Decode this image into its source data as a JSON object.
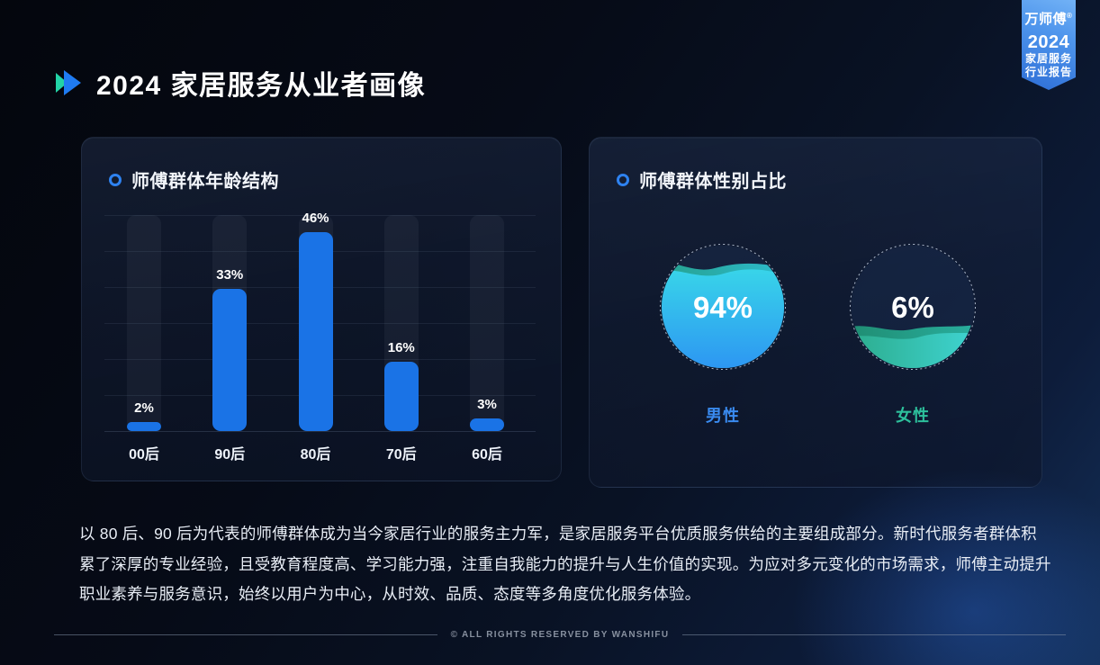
{
  "header": {
    "title": "2024 家居服务从业者画像"
  },
  "badge": {
    "brand": "万师傅",
    "reg": "®",
    "year": "2024",
    "sub1": "家居服务",
    "sub2": "行业报告"
  },
  "paragraph": {
    "lines": [
      "以 80 后、90 后为代表的师傅群体成为当今家居行业的服务主力军，是家居服务平台优质服务供给的主要组成部分。新时代服务者群体积",
      "累了深厚的专业经验，且受教育程度高、学习能力强，注重自我能力的提升与人生价值的实现。为应对多元变化的市场需求，师傅主动提升",
      "职业素养与服务意识，始终以用户为中心，从时效、品质、态度等多角度优化服务体验。"
    ]
  },
  "footer": {
    "copyright": "© ALL RIGHTS RESERVED BY WANSHIFU"
  },
  "colors": {
    "accent_blue": "#1f7bf2",
    "accent_teal": "#22d3a6",
    "bar_blue": "#1a73e6",
    "male_label_blue": "#3a8bf0",
    "female_label_teal": "#2dc09c",
    "ribbon_blue_top": "#72b2f6",
    "ribbon_blue_bottom": "#2e6ed6"
  },
  "chart_data": [
    {
      "type": "bar",
      "title": "师傅群体年龄结构",
      "categories": [
        "00后",
        "90后",
        "80后",
        "70后",
        "60后"
      ],
      "values": [
        2,
        33,
        46,
        16,
        3
      ],
      "data_labels": [
        "2%",
        "33%",
        "46%",
        "16%",
        "3%"
      ],
      "unit": "%",
      "ylim": [
        0,
        50
      ],
      "grid": true,
      "gridline_count": 7,
      "bar_color": "#1a73e6",
      "legend_position": "none"
    },
    {
      "type": "pie",
      "style": "liquid-fill-circles",
      "title": "师傅群体性别占比",
      "categories": [
        "男性",
        "女性"
      ],
      "values": [
        94,
        6
      ],
      "data_labels": [
        "94%",
        "6%"
      ],
      "colors": [
        "#2a8cf2",
        "#2dc09c"
      ],
      "legend_position": "below"
    }
  ]
}
